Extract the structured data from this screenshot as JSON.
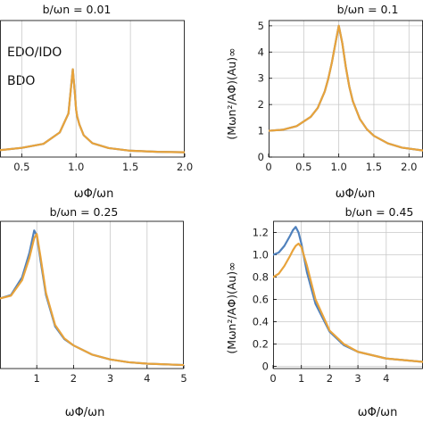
{
  "colors": {
    "edo_ido": "#4f81bd",
    "bdo": "#e8a33b",
    "grid": "#c8c8c8"
  },
  "chart_data": [
    {
      "type": "line",
      "title": "b/ωn = 0.01",
      "xlabel": "ωΦ/ωn",
      "ylabel": "",
      "xlim": [
        0.3,
        2.0
      ],
      "ylim": [
        -0.3,
        12.0
      ],
      "xticks": [
        0.5,
        1.0,
        1.5,
        2.0
      ],
      "xtick_labels": [
        "0.5",
        "1.0",
        "1.5",
        "2.0"
      ],
      "yticks": [],
      "ytick_labels": [],
      "grid": true,
      "legend": {
        "position": "top-left",
        "entries": [
          "EDO/IDO",
          "BDO"
        ]
      },
      "series": [
        {
          "name": "EDO/IDO",
          "x": [
            0.3,
            0.5,
            0.7,
            0.85,
            0.93,
            0.97,
            0.99,
            1.0,
            1.01,
            1.03,
            1.07,
            1.15,
            1.3,
            1.5,
            1.75,
            2.0
          ],
          "y": [
            0.32,
            0.53,
            0.89,
            1.92,
            3.63,
            7.61,
            5.32,
            4.0,
            3.36,
            2.65,
            1.67,
            0.95,
            0.51,
            0.27,
            0.17,
            0.13
          ]
        },
        {
          "name": "BDO",
          "x": [
            0.3,
            0.5,
            0.7,
            0.85,
            0.93,
            0.97,
            0.99,
            1.0,
            1.01,
            1.03,
            1.07,
            1.15,
            1.3,
            1.5,
            1.75,
            2.0
          ],
          "y": [
            0.32,
            0.53,
            0.89,
            1.92,
            3.63,
            7.61,
            5.32,
            4.0,
            3.36,
            2.65,
            1.67,
            0.95,
            0.51,
            0.27,
            0.17,
            0.13
          ]
        }
      ]
    },
    {
      "type": "line",
      "title": "b/ωn = 0.1",
      "xlabel": "ωΦ/ωn",
      "ylabel": "(Mωn²/AΦ)(Au)∞",
      "xlim": [
        0,
        2.2
      ],
      "ylim": [
        0,
        5.2
      ],
      "xticks": [
        0,
        0.5,
        1.0,
        1.5,
        2.0
      ],
      "xtick_labels": [
        "0",
        "0.5",
        "1.0",
        "1.5",
        "2.0"
      ],
      "yticks": [
        0,
        1,
        2,
        3,
        4,
        5
      ],
      "ytick_labels": [
        "0",
        "1",
        "2",
        "3",
        "4",
        "5"
      ],
      "grid": true,
      "series": [
        {
          "name": "EDO/IDO",
          "x": [
            0,
            0.2,
            0.4,
            0.6,
            0.7,
            0.8,
            0.85,
            0.9,
            0.95,
            1.0,
            1.05,
            1.1,
            1.15,
            1.2,
            1.3,
            1.4,
            1.5,
            1.7,
            1.9,
            2.2
          ],
          "y": [
            1.0,
            1.04,
            1.18,
            1.53,
            1.87,
            2.5,
            2.98,
            3.58,
            4.3,
            5.0,
            4.34,
            3.43,
            2.68,
            2.13,
            1.45,
            1.06,
            0.81,
            0.52,
            0.36,
            0.25
          ]
        },
        {
          "name": "BDO",
          "x": [
            0,
            0.2,
            0.4,
            0.6,
            0.7,
            0.8,
            0.85,
            0.9,
            0.95,
            1.0,
            1.05,
            1.1,
            1.15,
            1.2,
            1.3,
            1.4,
            1.5,
            1.7,
            1.9,
            2.2
          ],
          "y": [
            1.0,
            1.04,
            1.18,
            1.53,
            1.87,
            2.5,
            2.98,
            3.58,
            4.3,
            5.0,
            4.34,
            3.43,
            2.68,
            2.13,
            1.45,
            1.06,
            0.81,
            0.52,
            0.36,
            0.25
          ]
        }
      ]
    },
    {
      "type": "line",
      "title": "b/ωn = 0.25",
      "xlabel": "ωΦ/ωn",
      "ylabel": "",
      "xlim": [
        0,
        5
      ],
      "ylim": [
        0,
        2.1
      ],
      "xticks": [
        1,
        2,
        3,
        4,
        5
      ],
      "xtick_labels": [
        "1",
        "2",
        "3",
        "4",
        "5"
      ],
      "yticks": [],
      "ytick_labels": [],
      "grid": true,
      "series": [
        {
          "name": "EDO/IDO",
          "x": [
            0,
            0.3,
            0.6,
            0.8,
            0.93,
            1.0,
            1.1,
            1.25,
            1.5,
            1.75,
            2.0,
            2.5,
            3.0,
            3.5,
            4.0,
            5.0
          ],
          "y": [
            1.0,
            1.05,
            1.3,
            1.65,
            1.97,
            1.9,
            1.55,
            1.05,
            0.6,
            0.42,
            0.33,
            0.2,
            0.13,
            0.09,
            0.07,
            0.05
          ]
        },
        {
          "name": "BDO",
          "x": [
            0,
            0.3,
            0.6,
            0.8,
            0.93,
            1.0,
            1.1,
            1.25,
            1.5,
            1.75,
            2.0,
            2.5,
            3.0,
            3.5,
            4.0,
            5.0
          ],
          "y": [
            1.0,
            1.04,
            1.26,
            1.58,
            1.86,
            1.92,
            1.6,
            1.08,
            0.62,
            0.43,
            0.33,
            0.2,
            0.13,
            0.09,
            0.07,
            0.05
          ]
        }
      ]
    },
    {
      "type": "line",
      "title": "b/ωn = 0.45",
      "xlabel": "ωΦ/ωn",
      "ylabel": "(Mωn²/AΦ)(Au)∞",
      "xlim": [
        0,
        5.3
      ],
      "ylim": [
        -0.02,
        1.3
      ],
      "xticks": [
        0,
        1,
        2,
        3,
        4
      ],
      "xtick_labels": [
        "0",
        "1",
        "2",
        "3",
        "4"
      ],
      "yticks": [
        0,
        0.2,
        0.4,
        0.6,
        0.8,
        1.0,
        1.2
      ],
      "ytick_labels": [
        "0",
        "0.2",
        "0.4",
        "0.6",
        "0.8",
        "1.0",
        "1.2"
      ],
      "grid": true,
      "series": [
        {
          "name": "EDO/IDO",
          "x": [
            0,
            0.2,
            0.4,
            0.6,
            0.7,
            0.8,
            0.9,
            1.0,
            1.2,
            1.5,
            2.0,
            2.5,
            3.0,
            3.5,
            4.0,
            5.3
          ],
          "y": [
            1.0,
            1.02,
            1.08,
            1.17,
            1.22,
            1.25,
            1.2,
            1.1,
            0.84,
            0.56,
            0.31,
            0.19,
            0.13,
            0.1,
            0.07,
            0.04
          ]
        },
        {
          "name": "BDO",
          "x": [
            0,
            0.2,
            0.4,
            0.6,
            0.7,
            0.8,
            0.9,
            1.0,
            1.2,
            1.5,
            2.0,
            2.5,
            3.0,
            3.5,
            4.0,
            5.3
          ],
          "y": [
            0.8,
            0.83,
            0.9,
            0.99,
            1.04,
            1.08,
            1.1,
            1.07,
            0.9,
            0.6,
            0.32,
            0.2,
            0.13,
            0.1,
            0.07,
            0.04
          ]
        }
      ]
    }
  ]
}
